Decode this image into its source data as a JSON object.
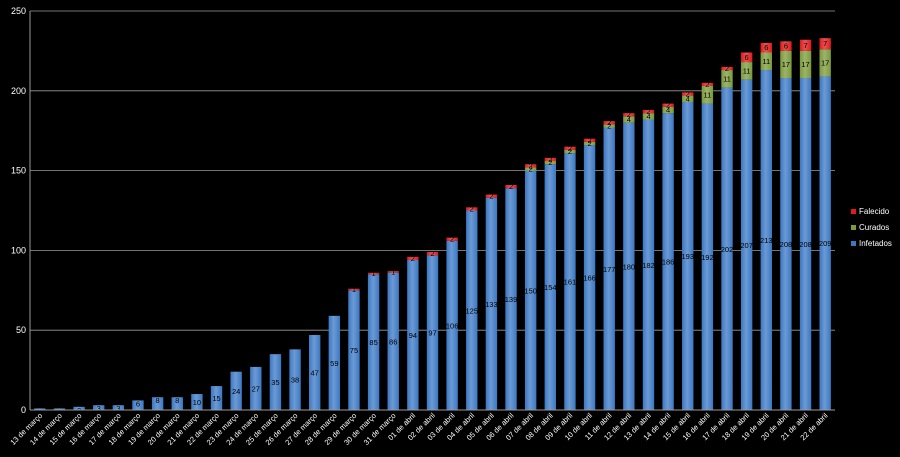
{
  "chart_data": {
    "type": "bar",
    "stacked": true,
    "categories": [
      "13 de março",
      "14 de março",
      "15 de março",
      "16 de março",
      "17 de março",
      "18 de março",
      "19 de março",
      "20 de março",
      "21 de março",
      "22 de março",
      "23 de março",
      "24 de março",
      "25 de março",
      "26 de março",
      "27 de março",
      "28 de março",
      "29 de março",
      "30 de março",
      "31 de março",
      "01 de abril",
      "02 de abril",
      "03 de abril",
      "04 de abril",
      "05 de abril",
      "06 de abril",
      "07 de abril",
      "08 de abril",
      "09 de abril",
      "10 de abril",
      "11 de abril",
      "12 de abril",
      "13 de abril",
      "14 de abril",
      "15 de abril",
      "16 de abril",
      "17 de abril",
      "18 de abril",
      "19 de abril",
      "20 de abril",
      "21 de abril",
      "22 de abril"
    ],
    "series": [
      {
        "name": "Infetados",
        "color": "#3b78c4",
        "values": [
          1,
          1,
          2,
          3,
          3,
          6,
          8,
          8,
          10,
          15,
          24,
          27,
          35,
          38,
          47,
          59,
          75,
          85,
          86,
          94,
          97,
          106,
          125,
          133,
          139,
          150,
          154,
          161,
          166,
          177,
          180,
          182,
          186,
          193,
          192,
          202,
          207,
          213,
          208,
          208,
          209
        ]
      },
      {
        "name": "Curados",
        "color": "#7b9a3a",
        "values": [
          0,
          0,
          0,
          0,
          0,
          0,
          0,
          0,
          0,
          0,
          0,
          0,
          0,
          0,
          0,
          0,
          0,
          0,
          0,
          0,
          0,
          0,
          0,
          0,
          0,
          2,
          2,
          2,
          2,
          2,
          4,
          4,
          4,
          4,
          11,
          11,
          11,
          11,
          17,
          17,
          17
        ]
      },
      {
        "name": "Falecido",
        "color": "#e0191a",
        "values": [
          0,
          0,
          0,
          0,
          0,
          0,
          0,
          0,
          0,
          0,
          0,
          0,
          0,
          0,
          0,
          0,
          1,
          1,
          1,
          2,
          2,
          2,
          2,
          2,
          2,
          2,
          2,
          2,
          2,
          2,
          2,
          2,
          2,
          2,
          2,
          2,
          6,
          6,
          6,
          7,
          7
        ]
      }
    ],
    "y_ticks": [
      "0",
      "50",
      "100",
      "150",
      "200",
      "250"
    ],
    "ylim": [
      0,
      250
    ],
    "grid": true,
    "legend_position": "right",
    "show_data_labels": true
  }
}
